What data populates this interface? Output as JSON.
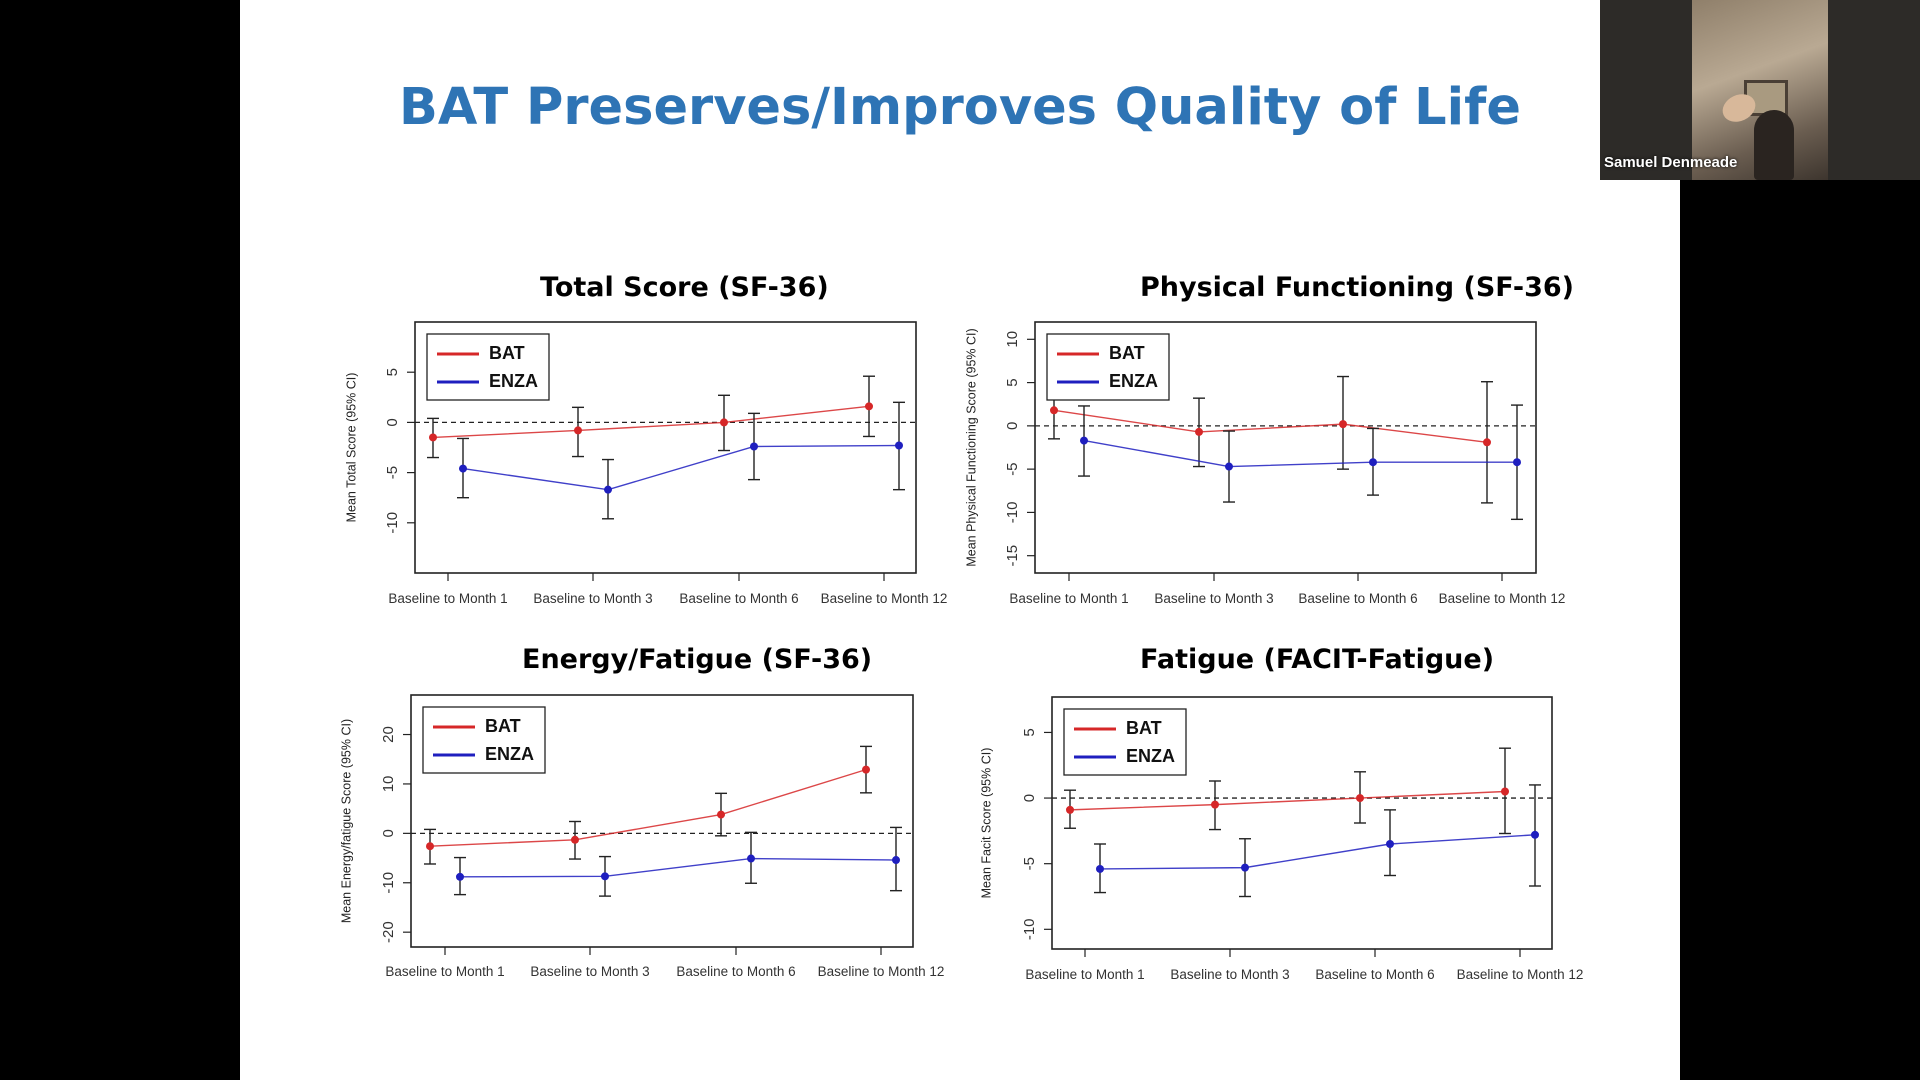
{
  "slide": {
    "title": "BAT Preserves/Improves Quality of Life"
  },
  "video_tile": {
    "participant_name": "Samuel Denmeade"
  },
  "colors": {
    "title": "#2E74B5",
    "bat": "#d62728",
    "enza": "#1f1fbf"
  },
  "chart_data": [
    {
      "type": "line",
      "title": "Total Score (SF-36)",
      "ylabel": "Mean Total Score (95% CI)",
      "xlabel": "",
      "categories": [
        "Baseline to Month 1",
        "Baseline to Month 3",
        "Baseline to Month 6",
        "Baseline to Month 12"
      ],
      "ylim": [
        -15,
        10
      ],
      "yticks": [
        5,
        0,
        -5,
        -10
      ],
      "legend": {
        "position": "top-left",
        "entries": [
          "BAT",
          "ENZA"
        ]
      },
      "series": [
        {
          "name": "BAT",
          "values": [
            -1.5,
            -0.8,
            0,
            1.6
          ],
          "lower": [
            -3.5,
            -3.4,
            -2.8,
            -1.4
          ],
          "upper": [
            0.4,
            1.5,
            2.7,
            4.6
          ]
        },
        {
          "name": "ENZA",
          "values": [
            -4.6,
            -6.7,
            -2.4,
            -2.3
          ],
          "lower": [
            -7.5,
            -9.6,
            -5.7,
            -6.7
          ],
          "upper": [
            -1.6,
            -3.7,
            0.9,
            2.0
          ]
        }
      ]
    },
    {
      "type": "line",
      "title": "Physical Functioning (SF-36)",
      "ylabel": "Mean Physical Functioning Score (95% CI)",
      "xlabel": "",
      "categories": [
        "Baseline to Month 1",
        "Baseline to Month 3",
        "Baseline to Month 6",
        "Baseline to Month 12"
      ],
      "ylim": [
        -17,
        12
      ],
      "yticks": [
        10,
        5,
        0,
        -5,
        -10,
        -15
      ],
      "legend": {
        "position": "top-left",
        "entries": [
          "BAT",
          "ENZA"
        ]
      },
      "series": [
        {
          "name": "BAT",
          "values": [
            1.8,
            -0.7,
            0.2,
            -1.9
          ],
          "lower": [
            -1.5,
            -4.7,
            -5.0,
            -8.9
          ],
          "upper": [
            5.1,
            3.2,
            5.7,
            5.1
          ]
        },
        {
          "name": "ENZA",
          "values": [
            -1.7,
            -4.7,
            -4.2,
            -4.2
          ],
          "lower": [
            -5.8,
            -8.8,
            -8.0,
            -10.8
          ],
          "upper": [
            2.3,
            -0.6,
            -0.3,
            2.4
          ]
        }
      ]
    },
    {
      "type": "line",
      "title": "Energy/Fatigue (SF-36)",
      "ylabel": "Mean Energy/fatigue Score (95% CI)",
      "xlabel": "",
      "categories": [
        "Baseline to Month 1",
        "Baseline to Month 3",
        "Baseline to Month 6",
        "Baseline to Month 12"
      ],
      "ylim": [
        -23,
        28
      ],
      "yticks": [
        20,
        10,
        0,
        -10,
        -20
      ],
      "legend": {
        "position": "top-left",
        "entries": [
          "BAT",
          "ENZA"
        ]
      },
      "series": [
        {
          "name": "BAT",
          "values": [
            -2.6,
            -1.3,
            3.8,
            12.9
          ],
          "lower": [
            -6.2,
            -5.2,
            -0.5,
            8.2
          ],
          "upper": [
            0.8,
            2.4,
            8.1,
            17.6
          ]
        },
        {
          "name": "ENZA",
          "values": [
            -8.8,
            -8.7,
            -5.1,
            -5.4
          ],
          "lower": [
            -12.4,
            -12.7,
            -10.1,
            -11.6
          ],
          "upper": [
            -4.9,
            -4.7,
            0.2,
            1.2
          ]
        }
      ]
    },
    {
      "type": "line",
      "title": "Fatigue (FACIT-Fatigue)",
      "ylabel": "Mean Facit Score (95% CI)",
      "xlabel": "",
      "categories": [
        "Baseline to Month 1",
        "Baseline to Month 3",
        "Baseline to Month 6",
        "Baseline to Month 12"
      ],
      "ylim": [
        -11.5,
        7.7
      ],
      "yticks": [
        5,
        0,
        -5,
        -10
      ],
      "legend": {
        "position": "top-left",
        "entries": [
          "BAT",
          "ENZA"
        ]
      },
      "series": [
        {
          "name": "BAT",
          "values": [
            -0.9,
            -0.5,
            0,
            0.5
          ],
          "lower": [
            -2.3,
            -2.4,
            -1.9,
            -2.7
          ],
          "upper": [
            0.6,
            1.3,
            2.0,
            3.8
          ]
        },
        {
          "name": "ENZA",
          "values": [
            -5.4,
            -5.3,
            -3.5,
            -2.8
          ],
          "lower": [
            -7.2,
            -7.5,
            -5.9,
            -6.7
          ],
          "upper": [
            -3.5,
            -3.1,
            -0.9,
            1.0
          ]
        }
      ]
    }
  ]
}
